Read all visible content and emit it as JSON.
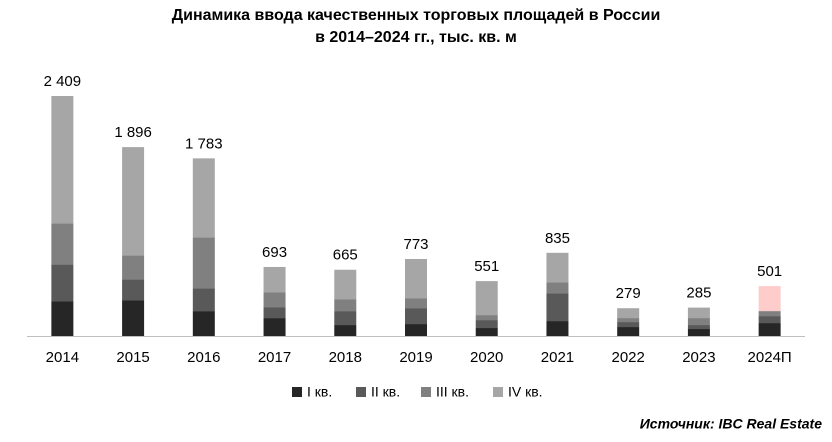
{
  "chart_data": {
    "type": "stacked_bar",
    "title": [
      "Динамика ввода качественных торговых площадей в России",
      "в 2014–2024 гг., тыс. кв. м"
    ],
    "categories": [
      "2014",
      "2015",
      "2016",
      "2017",
      "2018",
      "2019",
      "2020",
      "2021",
      "2022",
      "2023",
      "2024П"
    ],
    "series": [
      {
        "name": "I кв.",
        "color": "#262626",
        "values": [
          350,
          360,
          250,
          180,
          110,
          120,
          80,
          150,
          90,
          70,
          130
        ]
      },
      {
        "name": "II кв.",
        "color": "#595959",
        "values": [
          370,
          210,
          230,
          110,
          140,
          160,
          80,
          280,
          50,
          40,
          70
        ]
      },
      {
        "name": "III кв.",
        "color": "#808080",
        "values": [
          410,
          240,
          510,
          150,
          120,
          100,
          50,
          110,
          40,
          70,
          50
        ]
      },
      {
        "name": "IV кв.",
        "color": "#a6a6a6",
        "values": [
          1279,
          1086,
          793,
          253,
          295,
          393,
          341,
          295,
          99,
          105,
          251
        ],
        "colors": [
          "#a6a6a6",
          "#a6a6a6",
          "#a6a6a6",
          "#a6a6a6",
          "#a6a6a6",
          "#a6a6a6",
          "#a6a6a6",
          "#a6a6a6",
          "#a6a6a6",
          "#a6a6a6",
          "#ffcccc"
        ]
      }
    ],
    "totals": [
      2409,
      1896,
      1783,
      693,
      665,
      773,
      551,
      835,
      279,
      285,
      501
    ],
    "total_labels": [
      "2 409",
      "1 896",
      "1 783",
      "693",
      "665",
      "773",
      "551",
      "835",
      "279",
      "285",
      "501"
    ],
    "source": "Источник: IBC Real Estate"
  }
}
